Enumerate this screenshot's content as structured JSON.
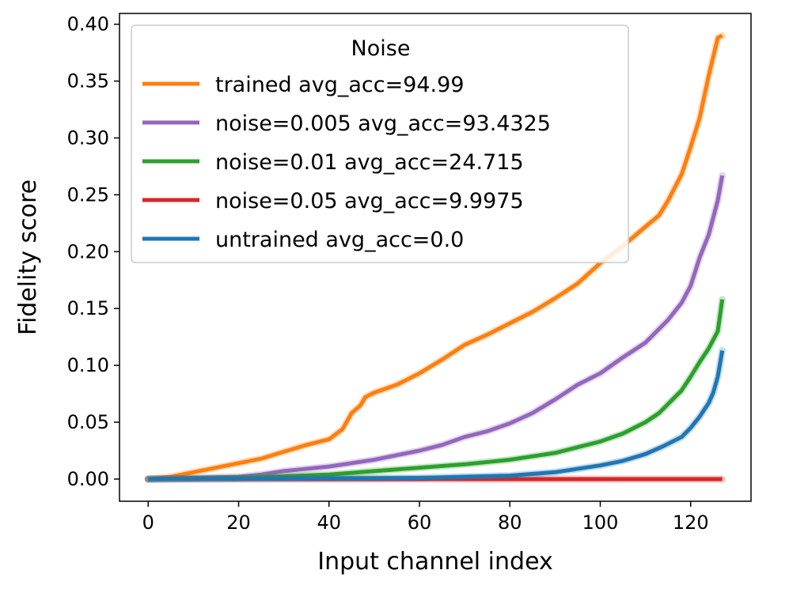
{
  "chart_data": {
    "type": "line",
    "xlabel": "Input channel index",
    "ylabel": "Fidelity score",
    "xlim": [
      -6.35,
      133.35
    ],
    "ylim": [
      -0.0195,
      0.4095
    ],
    "xticks": [
      0,
      20,
      40,
      60,
      80,
      100,
      120
    ],
    "xtick_labels": [
      "0",
      "20",
      "40",
      "60",
      "80",
      "100",
      "120"
    ],
    "yticks": [
      0.0,
      0.05,
      0.1,
      0.15,
      0.2,
      0.25,
      0.3,
      0.35,
      0.4
    ],
    "ytick_labels": [
      "0.00",
      "0.05",
      "0.10",
      "0.15",
      "0.20",
      "0.25",
      "0.30",
      "0.35",
      "0.40"
    ],
    "legend": {
      "title": "Noise",
      "position": "top-left"
    },
    "series": [
      {
        "name": "trained avg_acc=94.99",
        "color": "#ff7f0e",
        "x": [
          0,
          5,
          10,
          15,
          20,
          25,
          30,
          35,
          40,
          43,
          45,
          47,
          48,
          50,
          55,
          60,
          65,
          70,
          75,
          80,
          85,
          90,
          95,
          100,
          105,
          110,
          113,
          115,
          118,
          120,
          122,
          124,
          126,
          127
        ],
        "y": [
          0.0,
          0.002,
          0.006,
          0.01,
          0.014,
          0.018,
          0.024,
          0.03,
          0.035,
          0.044,
          0.058,
          0.065,
          0.072,
          0.076,
          0.083,
          0.093,
          0.105,
          0.118,
          0.127,
          0.137,
          0.147,
          0.159,
          0.172,
          0.19,
          0.205,
          0.222,
          0.232,
          0.245,
          0.268,
          0.292,
          0.318,
          0.355,
          0.388,
          0.39
        ]
      },
      {
        "name": "noise=0.005 avg_acc=93.4325",
        "color": "#9467bd",
        "x": [
          0,
          10,
          20,
          25,
          30,
          40,
          50,
          60,
          65,
          70,
          75,
          80,
          85,
          90,
          95,
          100,
          105,
          110,
          115,
          118,
          120,
          122,
          124,
          126,
          127
        ],
        "y": [
          0.0,
          0.001,
          0.002,
          0.004,
          0.007,
          0.011,
          0.017,
          0.025,
          0.03,
          0.037,
          0.042,
          0.049,
          0.058,
          0.07,
          0.083,
          0.093,
          0.107,
          0.12,
          0.14,
          0.155,
          0.17,
          0.195,
          0.215,
          0.245,
          0.267
        ]
      },
      {
        "name": "noise=0.01 avg_acc=24.715",
        "color": "#2ca02c",
        "x": [
          0,
          20,
          40,
          50,
          60,
          70,
          80,
          85,
          90,
          95,
          100,
          105,
          110,
          113,
          115,
          118,
          120,
          122,
          124,
          126,
          127
        ],
        "y": [
          0.0,
          0.001,
          0.004,
          0.007,
          0.01,
          0.013,
          0.017,
          0.02,
          0.023,
          0.028,
          0.033,
          0.04,
          0.05,
          0.058,
          0.066,
          0.078,
          0.09,
          0.103,
          0.115,
          0.13,
          0.158
        ]
      },
      {
        "name": "noise=0.05 avg_acc=9.9975",
        "color": "#d62728",
        "x": [
          0,
          127
        ],
        "y": [
          0.0,
          0.0
        ]
      },
      {
        "name": "untrained avg_acc=0.0",
        "color": "#1f77b4",
        "x": [
          0,
          60,
          80,
          90,
          100,
          105,
          110,
          114,
          118,
          120,
          122,
          124,
          125,
          126,
          127
        ],
        "y": [
          0.0,
          0.001,
          0.003,
          0.006,
          0.012,
          0.016,
          0.022,
          0.029,
          0.037,
          0.045,
          0.055,
          0.067,
          0.076,
          0.09,
          0.113
        ]
      }
    ]
  }
}
